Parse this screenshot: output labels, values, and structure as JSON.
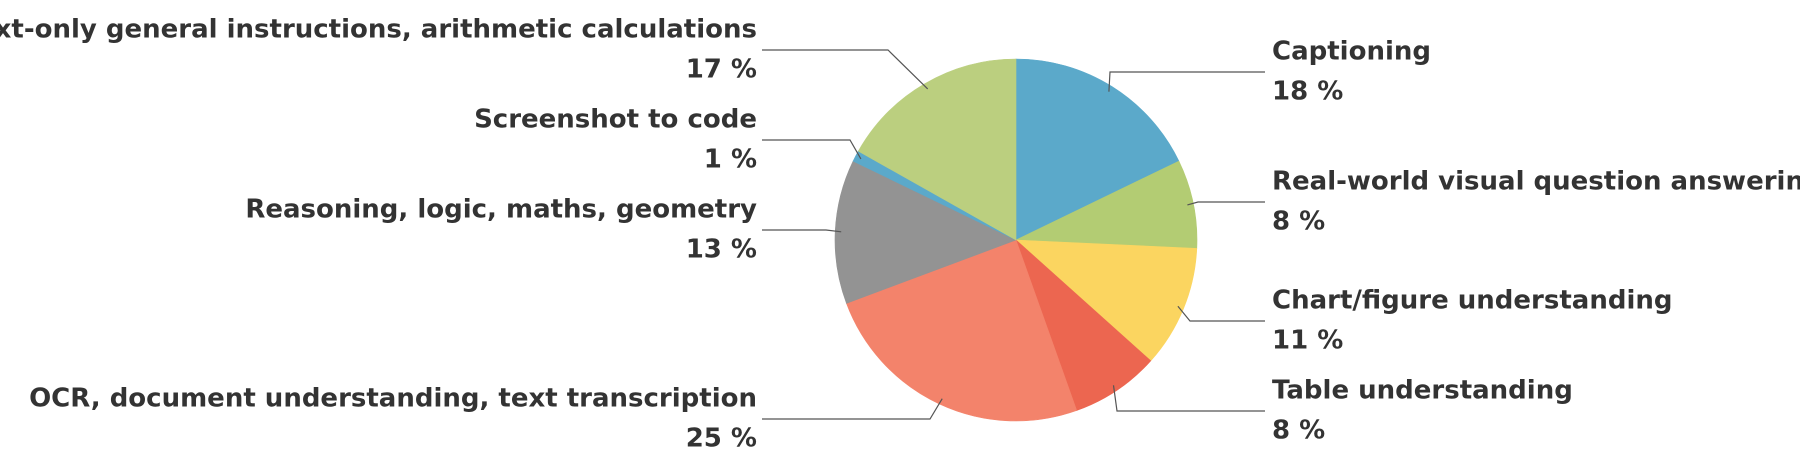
{
  "chart_data": {
    "type": "pie",
    "start_angle": "12 o'clock",
    "direction": "clockwise",
    "slices": [
      {
        "label": "Captioning",
        "value": 18,
        "value_label": "18 %",
        "color": "#5ba9ca",
        "side": "right"
      },
      {
        "label": "Real-world visual question answering",
        "value": 8,
        "value_label": "8 %",
        "color": "#b3cc73",
        "side": "right"
      },
      {
        "label": "Chart/figure understanding",
        "value": 11,
        "value_label": "11 %",
        "color": "#fbd560",
        "side": "right"
      },
      {
        "label": "Table understanding",
        "value": 8,
        "value_label": "8 %",
        "color": "#ec6650",
        "side": "right"
      },
      {
        "label": "OCR, document understanding, text transcription",
        "value": 25,
        "value_label": "25 %",
        "color": "#f3836b",
        "side": "left"
      },
      {
        "label": "Reasoning, logic, maths, geometry",
        "value": 13,
        "value_label": "13 %",
        "color": "#939393",
        "side": "left"
      },
      {
        "label": "Screenshot to code",
        "value": 1,
        "value_label": "1 %",
        "color": "#5ba9ca",
        "side": "left"
      },
      {
        "label": "Text-only general instructions, arithmetic calculations",
        "value": 17,
        "value_label": "17 %",
        "color": "#bbcf7f",
        "side": "left"
      }
    ]
  }
}
